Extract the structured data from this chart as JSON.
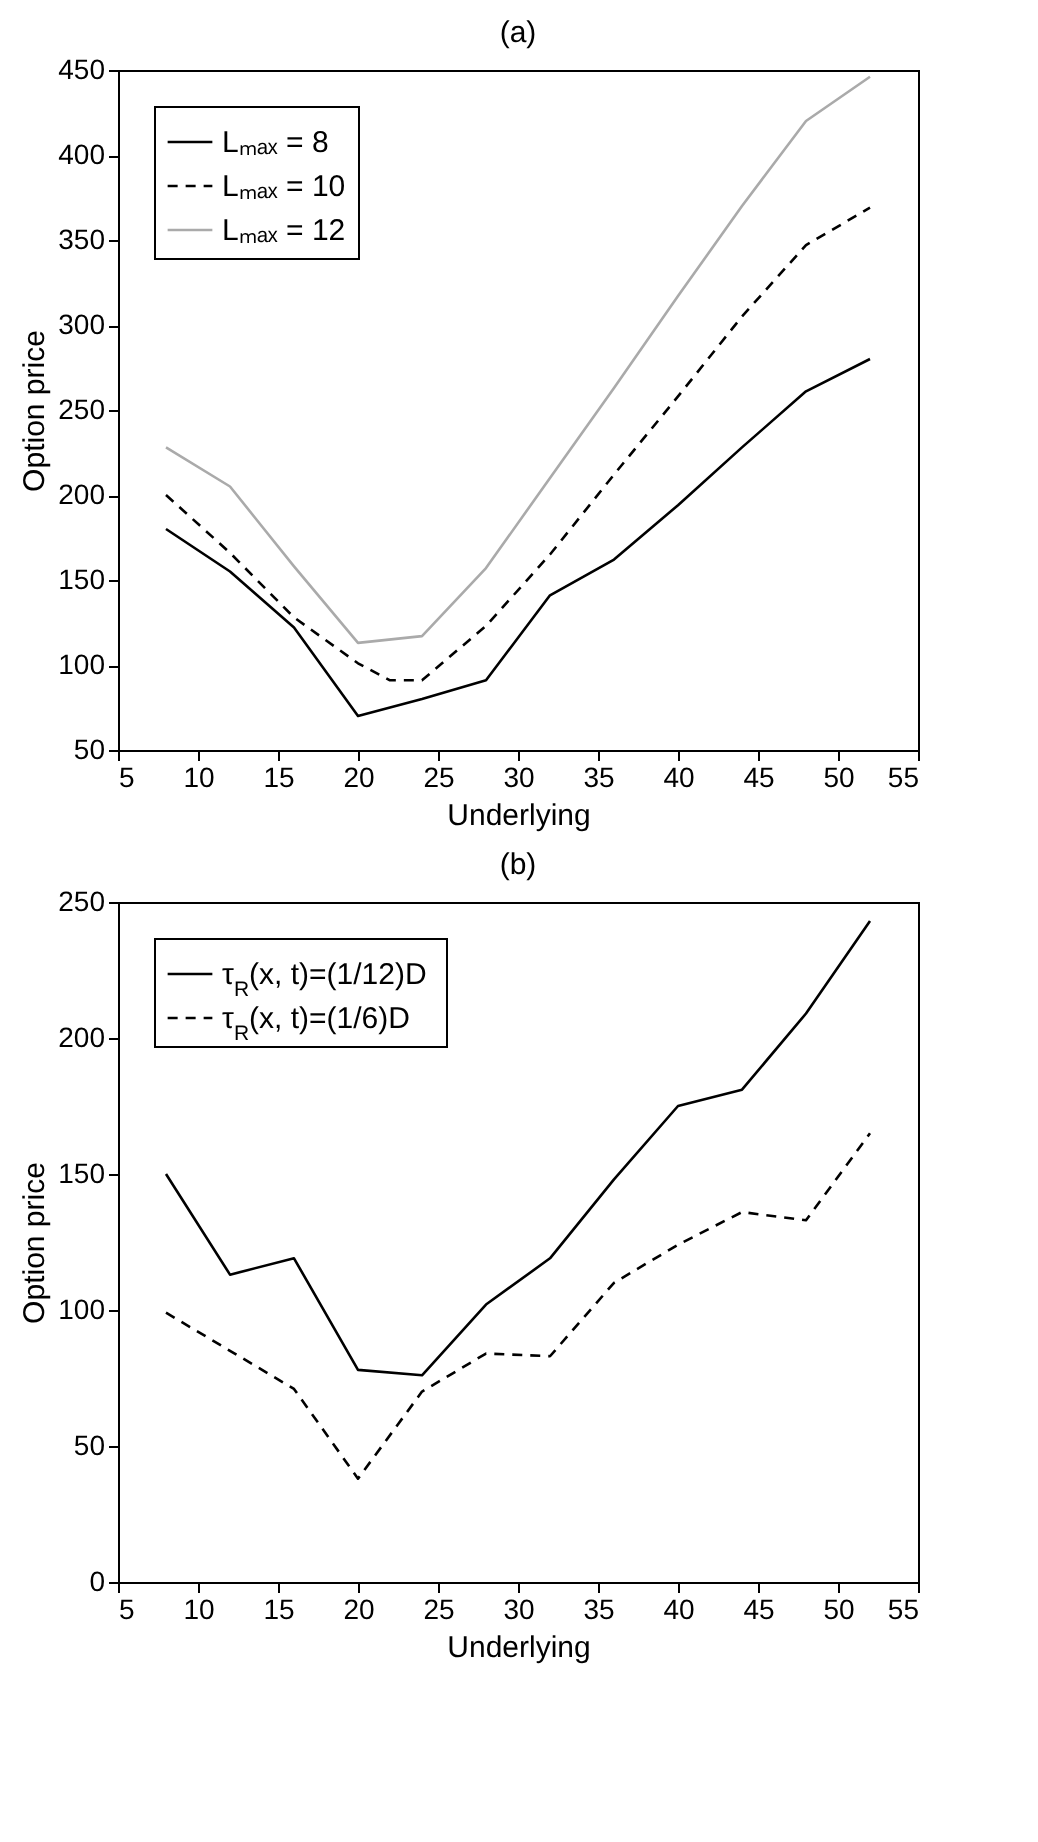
{
  "chart_data": [
    {
      "type": "line",
      "title": "(a)",
      "xlabel": "Underlying",
      "ylabel": "Option price",
      "xlim": [
        5,
        55
      ],
      "xticks": [
        5,
        10,
        15,
        20,
        25,
        30,
        35,
        40,
        45,
        50,
        55
      ],
      "ylim": [
        50,
        450
      ],
      "yticks": [
        50,
        100,
        150,
        200,
        250,
        300,
        350,
        400,
        450
      ],
      "legend": "top left",
      "x": [
        8,
        12,
        16,
        20,
        24,
        28,
        32,
        36,
        40,
        44,
        48,
        52
      ],
      "series": [
        {
          "name": "Lₘₐₓ = 8",
          "color": "#000000",
          "line_style": "solid",
          "values": [
            180,
            155,
            122,
            70,
            80,
            91,
            141,
            162,
            194,
            228,
            261,
            280
          ]
        },
        {
          "name": "Lₘₐₓ = 10",
          "color": "#000000",
          "line_style": "dashed",
          "x": [
            8,
            12,
            16,
            20,
            22,
            24,
            28,
            32,
            36,
            40,
            44,
            48,
            52
          ],
          "values": [
            200,
            166,
            128,
            101,
            91,
            91,
            123,
            165,
            212,
            258,
            305,
            347,
            369
          ]
        },
        {
          "name": "Lₘₐₓ = 12",
          "color": "#aaaaaa",
          "line_style": "solid",
          "values": [
            228,
            205,
            158,
            113,
            117,
            157,
            210,
            263,
            317,
            370,
            420,
            446
          ]
        }
      ]
    },
    {
      "type": "line",
      "title": "(b)",
      "xlabel": "Underlying",
      "ylabel": "Option price",
      "xlim": [
        5,
        55
      ],
      "xticks": [
        5,
        10,
        15,
        20,
        25,
        30,
        35,
        40,
        45,
        50,
        55
      ],
      "ylim": [
        0,
        250
      ],
      "yticks": [
        0,
        50,
        100,
        150,
        200,
        250
      ],
      "legend": "top left",
      "x": [
        8,
        12,
        16,
        20,
        24,
        28,
        32,
        36,
        40,
        44,
        48,
        52
      ],
      "series": [
        {
          "name": "τ$_{R}$(x, t)=(1/12)D",
          "color": "#000000",
          "line_style": "solid",
          "values": [
            150,
            113,
            119,
            78,
            76,
            102,
            119,
            148,
            175,
            181,
            209,
            243
          ]
        },
        {
          "name": "τ$_{R}$(x, t)=(1/6)D",
          "color": "#000000",
          "line_style": "dashed",
          "values": [
            99,
            85,
            71,
            38,
            70,
            84,
            83,
            110,
            124,
            136,
            133,
            165
          ]
        }
      ]
    }
  ]
}
